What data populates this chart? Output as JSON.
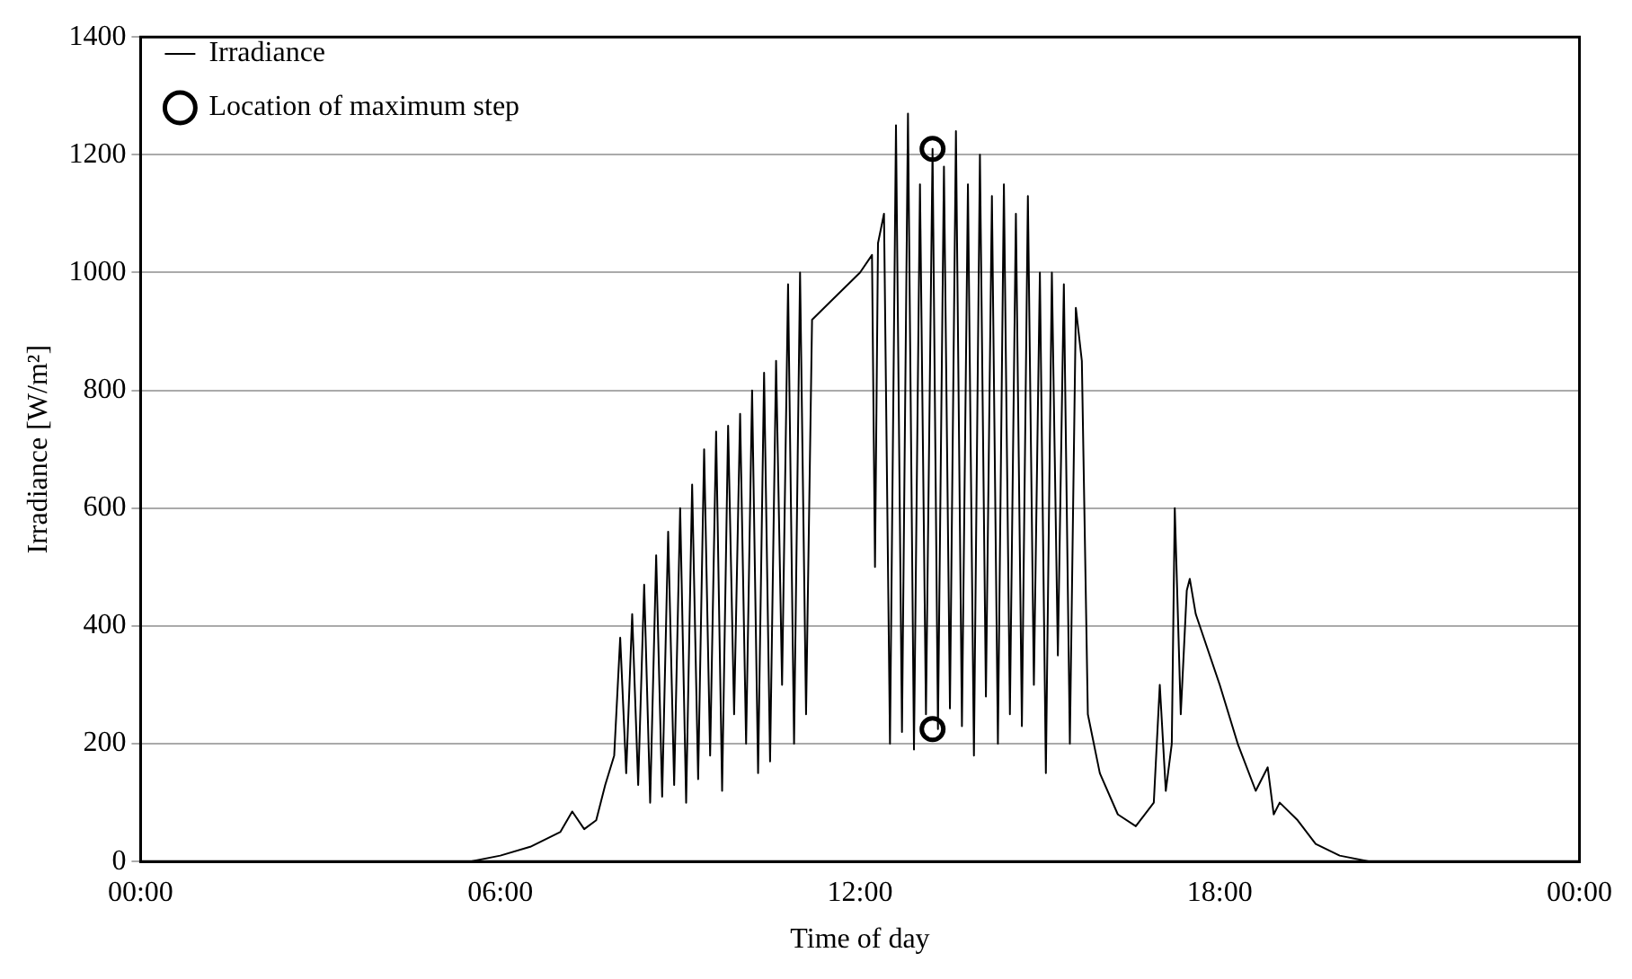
{
  "chart_data": {
    "type": "line",
    "xlabel": "Time of day",
    "ylabel": "Irradiance [W/m²]",
    "xlim": [
      0,
      24
    ],
    "xticks": [
      {
        "value": 0,
        "label": "00:00"
      },
      {
        "value": 6,
        "label": "06:00"
      },
      {
        "value": 12,
        "label": "12:00"
      },
      {
        "value": 18,
        "label": "18:00"
      },
      {
        "value": 24,
        "label": "00:00"
      }
    ],
    "ylim": [
      0,
      1400
    ],
    "yticks": [
      0,
      200,
      400,
      600,
      800,
      1000,
      1200,
      1400
    ],
    "grid": "y",
    "legend": "top left",
    "series": [
      {
        "name": "Irradiance",
        "color": "#000000",
        "marker": "none",
        "x": [
          0,
          5.5,
          6.0,
          6.5,
          7.0,
          7.2,
          7.4,
          7.6,
          7.75,
          7.9,
          8.0,
          8.1,
          8.2,
          8.3,
          8.4,
          8.5,
          8.6,
          8.7,
          8.8,
          8.9,
          9.0,
          9.1,
          9.2,
          9.3,
          9.4,
          9.5,
          9.6,
          9.7,
          9.8,
          9.9,
          10.0,
          10.1,
          10.2,
          10.3,
          10.4,
          10.5,
          10.6,
          10.7,
          10.8,
          10.9,
          11.0,
          11.1,
          11.2,
          11.5,
          12.0,
          12.2,
          12.25,
          12.3,
          12.4,
          12.5,
          12.6,
          12.7,
          12.8,
          12.9,
          13.0,
          13.1,
          13.21,
          13.3,
          13.4,
          13.5,
          13.6,
          13.7,
          13.8,
          13.9,
          14.0,
          14.1,
          14.2,
          14.3,
          14.4,
          14.5,
          14.6,
          14.7,
          14.8,
          14.9,
          15.0,
          15.1,
          15.2,
          15.3,
          15.4,
          15.5,
          15.6,
          15.7,
          15.8,
          16.0,
          16.3,
          16.6,
          16.9,
          17.0,
          17.1,
          17.2,
          17.25,
          17.35,
          17.45,
          17.5,
          17.6,
          18.0,
          18.3,
          18.6,
          18.8,
          18.9,
          19.0,
          19.3,
          19.6,
          20.0,
          20.5,
          21.0,
          24.0
        ],
        "values": [
          0,
          0,
          10,
          25,
          50,
          85,
          55,
          70,
          130,
          180,
          380,
          150,
          420,
          130,
          470,
          100,
          520,
          110,
          560,
          130,
          600,
          100,
          640,
          140,
          700,
          180,
          730,
          120,
          740,
          250,
          760,
          200,
          800,
          150,
          830,
          170,
          850,
          300,
          980,
          200,
          1000,
          250,
          920,
          950,
          1000,
          1030,
          500,
          1050,
          1100,
          200,
          1250,
          220,
          1270,
          190,
          1150,
          250,
          1210,
          225,
          1180,
          260,
          1240,
          230,
          1150,
          180,
          1200,
          280,
          1130,
          200,
          1150,
          250,
          1100,
          230,
          1130,
          300,
          1000,
          150,
          1000,
          350,
          980,
          200,
          940,
          850,
          250,
          150,
          80,
          60,
          100,
          300,
          120,
          200,
          600,
          250,
          460,
          480,
          420,
          300,
          200,
          120,
          160,
          80,
          100,
          70,
          30,
          10,
          0,
          0,
          0
        ]
      },
      {
        "name": "Location of maximum step",
        "type": "scatter",
        "color": "#000000",
        "marker": "circle",
        "x": [
          13.21,
          13.21
        ],
        "values": [
          1210,
          225
        ]
      }
    ]
  }
}
